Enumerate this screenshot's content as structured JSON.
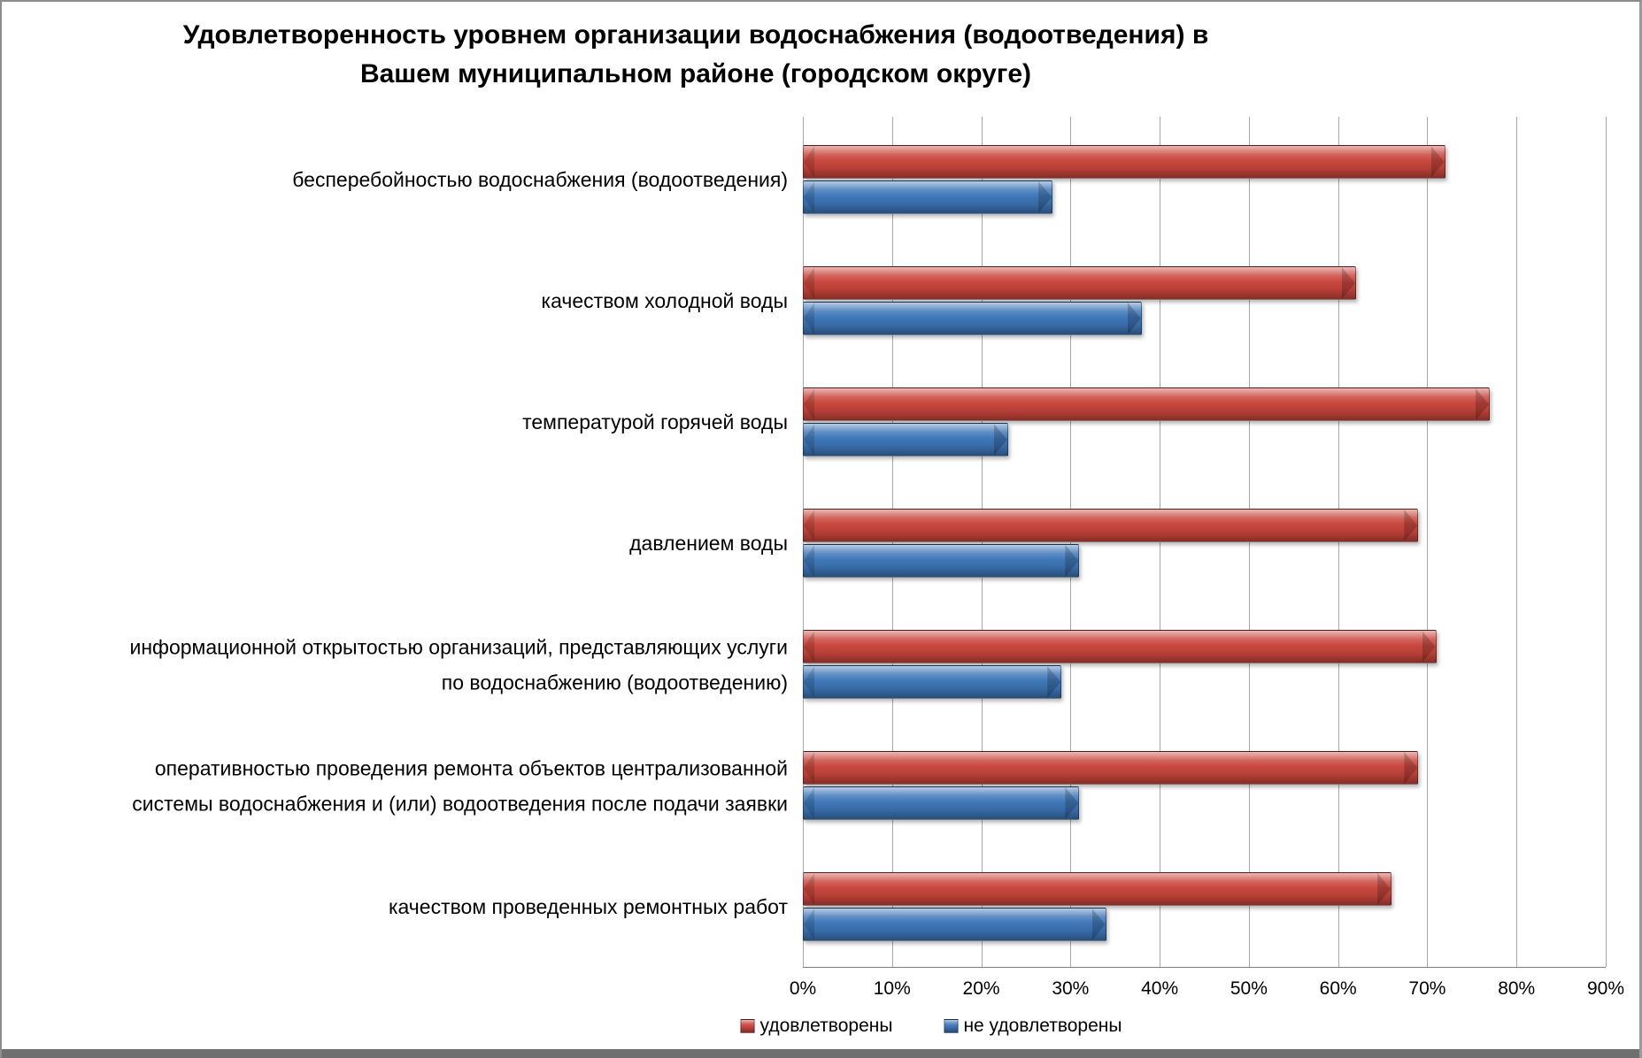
{
  "chart_data": {
    "type": "bar",
    "orientation": "horizontal",
    "title": "Удовлетворенность уровнем организации водоснабжения (водоотведения) в Вашем муниципальном районе (городском округе)",
    "categories": [
      "бесперебойностью  водоснабжения (водоотведения)",
      "качеством холодной воды",
      "температурой горячей воды",
      "давлением воды",
      "информационной открытостью организаций, представляющих услуги\nпо водоснабжению (водоотведению)",
      "оперативностью проведения ремонта объектов централизованной\nсистемы водоснабжения и (или) водоотведения после подачи заявки",
      "качеством проведенных ремонтных работ"
    ],
    "series": [
      {
        "name": "удовлетворены",
        "color": "#C9453C",
        "values": [
          72,
          62,
          77,
          69,
          71,
          69,
          66
        ]
      },
      {
        "name": "не удовлетворены",
        "color": "#3D76B8",
        "values": [
          28,
          38,
          23,
          31,
          29,
          31,
          34
        ]
      }
    ],
    "x_axis": {
      "min": 0,
      "max": 90,
      "ticks": [
        "0%",
        "10%",
        "20%",
        "30%",
        "40%",
        "50%",
        "60%",
        "70%",
        "80%",
        "90%"
      ]
    },
    "legend_position": "bottom",
    "grid": "vertical",
    "colors": {
      "gridline": "#A8A8A8",
      "axis_line": "#7F7F7F",
      "frame_border": "#8C8C8C",
      "bottom_band": "#6F6F6F",
      "text": "#000000",
      "background": "#FFFFFF"
    }
  }
}
